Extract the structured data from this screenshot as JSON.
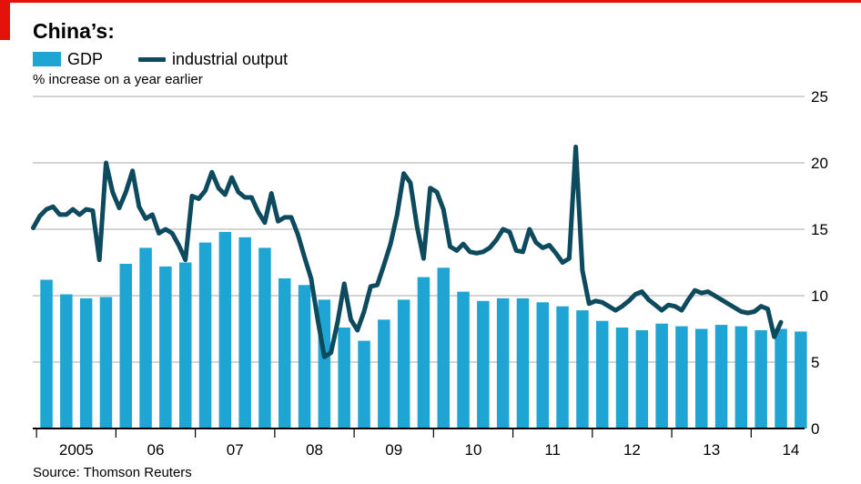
{
  "header": {
    "title": "China’s:",
    "subtitle": "% increase on a year earlier"
  },
  "legend": {
    "gdp_label": "GDP",
    "industrial_label": "industrial output"
  },
  "source": "Source: Thomson Reuters",
  "colors": {
    "accent_red": "#e3120b",
    "gdp_bar": "#1fa5d3",
    "industrial_line": "#0d4a5e",
    "gridline": "#c6c6c6"
  },
  "chart_data": {
    "type": "bar",
    "title": "China’s:",
    "subtitle": "% increase on a year earlier",
    "ylim": [
      0,
      25
    ],
    "y_ticks": [
      0,
      5,
      10,
      15,
      20,
      25
    ],
    "y_axis_side": "right",
    "grid": true,
    "x_range": [
      "2004-12",
      "2014-10"
    ],
    "x_tick_labels": [
      "2005",
      "06",
      "07",
      "08",
      "09",
      "10",
      "11",
      "12",
      "13",
      "14"
    ],
    "legend_position": "top-left",
    "series": [
      {
        "name": "GDP",
        "type": "bar",
        "frequency": "quarterly",
        "categories": [
          "2005Q1",
          "2005Q2",
          "2005Q3",
          "2005Q4",
          "2006Q1",
          "2006Q2",
          "2006Q3",
          "2006Q4",
          "2007Q1",
          "2007Q2",
          "2007Q3",
          "2007Q4",
          "2008Q1",
          "2008Q2",
          "2008Q3",
          "2008Q4",
          "2009Q1",
          "2009Q2",
          "2009Q3",
          "2009Q4",
          "2010Q1",
          "2010Q2",
          "2010Q3",
          "2010Q4",
          "2011Q1",
          "2011Q2",
          "2011Q3",
          "2011Q4",
          "2012Q1",
          "2012Q2",
          "2012Q3",
          "2012Q4",
          "2013Q1",
          "2013Q2",
          "2013Q3",
          "2013Q4",
          "2014Q1",
          "2014Q2",
          "2014Q3"
        ],
        "values": [
          11.2,
          10.1,
          9.8,
          9.9,
          12.4,
          13.6,
          12.2,
          12.5,
          14.0,
          14.8,
          14.4,
          13.6,
          11.3,
          10.8,
          9.7,
          7.6,
          6.6,
          8.2,
          9.7,
          11.4,
          12.1,
          10.3,
          9.6,
          9.8,
          9.8,
          9.5,
          9.2,
          8.9,
          8.1,
          7.6,
          7.4,
          7.9,
          7.7,
          7.5,
          7.8,
          7.7,
          7.4,
          7.5,
          7.3
        ]
      },
      {
        "name": "industrial output",
        "type": "line",
        "frequency": "monthly",
        "points": [
          [
            "2004-12",
            15.1
          ],
          [
            "2005-01",
            16.0
          ],
          [
            "2005-02",
            16.5
          ],
          [
            "2005-03",
            16.7
          ],
          [
            "2005-04",
            16.1
          ],
          [
            "2005-05",
            16.1
          ],
          [
            "2005-06",
            16.5
          ],
          [
            "2005-07",
            16.1
          ],
          [
            "2005-08",
            16.5
          ],
          [
            "2005-09",
            16.4
          ],
          [
            "2005-10",
            12.7
          ],
          [
            "2005-11",
            20.0
          ],
          [
            "2005-12",
            17.8
          ],
          [
            "2006-01",
            16.6
          ],
          [
            "2006-02",
            17.8
          ],
          [
            "2006-03",
            19.4
          ],
          [
            "2006-04",
            16.7
          ],
          [
            "2006-05",
            15.8
          ],
          [
            "2006-06",
            16.1
          ],
          [
            "2006-07",
            14.7
          ],
          [
            "2006-08",
            15.0
          ],
          [
            "2006-09",
            14.7
          ],
          [
            "2006-10",
            13.8
          ],
          [
            "2006-11",
            12.7
          ],
          [
            "2006-12",
            17.5
          ],
          [
            "2007-01",
            17.3
          ],
          [
            "2007-02",
            17.9
          ],
          [
            "2007-03",
            19.3
          ],
          [
            "2007-04",
            18.1
          ],
          [
            "2007-05",
            17.6
          ],
          [
            "2007-06",
            18.9
          ],
          [
            "2007-07",
            17.8
          ],
          [
            "2007-08",
            17.4
          ],
          [
            "2007-09",
            17.4
          ],
          [
            "2007-10",
            16.3
          ],
          [
            "2007-11",
            15.5
          ],
          [
            "2007-12",
            17.7
          ],
          [
            "2008-01",
            15.6
          ],
          [
            "2008-02",
            15.9
          ],
          [
            "2008-03",
            15.9
          ],
          [
            "2008-04",
            14.6
          ],
          [
            "2008-05",
            12.9
          ],
          [
            "2008-06",
            11.3
          ],
          [
            "2008-07",
            8.2
          ],
          [
            "2008-08",
            5.4
          ],
          [
            "2008-09",
            5.7
          ],
          [
            "2008-10",
            8.0
          ],
          [
            "2008-11",
            10.9
          ],
          [
            "2008-12",
            8.2
          ],
          [
            "2009-01",
            7.4
          ],
          [
            "2009-02",
            8.8
          ],
          [
            "2009-03",
            10.7
          ],
          [
            "2009-04",
            10.8
          ],
          [
            "2009-05",
            12.3
          ],
          [
            "2009-06",
            13.9
          ],
          [
            "2009-07",
            16.1
          ],
          [
            "2009-08",
            19.2
          ],
          [
            "2009-09",
            18.5
          ],
          [
            "2009-10",
            15.2
          ],
          [
            "2009-11",
            12.8
          ],
          [
            "2009-12",
            18.1
          ],
          [
            "2010-01",
            17.8
          ],
          [
            "2010-02",
            16.5
          ],
          [
            "2010-03",
            13.7
          ],
          [
            "2010-04",
            13.4
          ],
          [
            "2010-05",
            13.9
          ],
          [
            "2010-06",
            13.3
          ],
          [
            "2010-07",
            13.2
          ],
          [
            "2010-08",
            13.3
          ],
          [
            "2010-09",
            13.6
          ],
          [
            "2010-10",
            14.2
          ],
          [
            "2010-11",
            15.0
          ],
          [
            "2010-12",
            14.8
          ],
          [
            "2011-01",
            13.4
          ],
          [
            "2011-02",
            13.3
          ],
          [
            "2011-03",
            15.0
          ],
          [
            "2011-04",
            14.0
          ],
          [
            "2011-05",
            13.6
          ],
          [
            "2011-06",
            13.8
          ],
          [
            "2011-07",
            13.2
          ],
          [
            "2011-08",
            12.5
          ],
          [
            "2011-09",
            12.8
          ],
          [
            "2011-10",
            21.2
          ],
          [
            "2011-11",
            11.9
          ],
          [
            "2011-12",
            9.4
          ],
          [
            "2012-01",
            9.6
          ],
          [
            "2012-02",
            9.5
          ],
          [
            "2012-03",
            9.2
          ],
          [
            "2012-04",
            8.9
          ],
          [
            "2012-05",
            9.2
          ],
          [
            "2012-06",
            9.6
          ],
          [
            "2012-07",
            10.1
          ],
          [
            "2012-08",
            10.3
          ],
          [
            "2012-09",
            9.7
          ],
          [
            "2012-10",
            9.3
          ],
          [
            "2012-11",
            8.9
          ],
          [
            "2012-12",
            9.3
          ],
          [
            "2013-01",
            9.2
          ],
          [
            "2013-02",
            8.9
          ],
          [
            "2013-03",
            9.7
          ],
          [
            "2013-04",
            10.4
          ],
          [
            "2013-05",
            10.2
          ],
          [
            "2013-06",
            10.3
          ],
          [
            "2013-07",
            10.0
          ],
          [
            "2013-08",
            9.7
          ],
          [
            "2013-09",
            9.4
          ],
          [
            "2013-10",
            9.1
          ],
          [
            "2013-11",
            8.8
          ],
          [
            "2013-12",
            8.7
          ],
          [
            "2014-01",
            8.8
          ],
          [
            "2014-02",
            9.2
          ],
          [
            "2014-03",
            9.0
          ],
          [
            "2014-04",
            6.9
          ],
          [
            "2014-05",
            8.0
          ]
        ]
      }
    ]
  }
}
